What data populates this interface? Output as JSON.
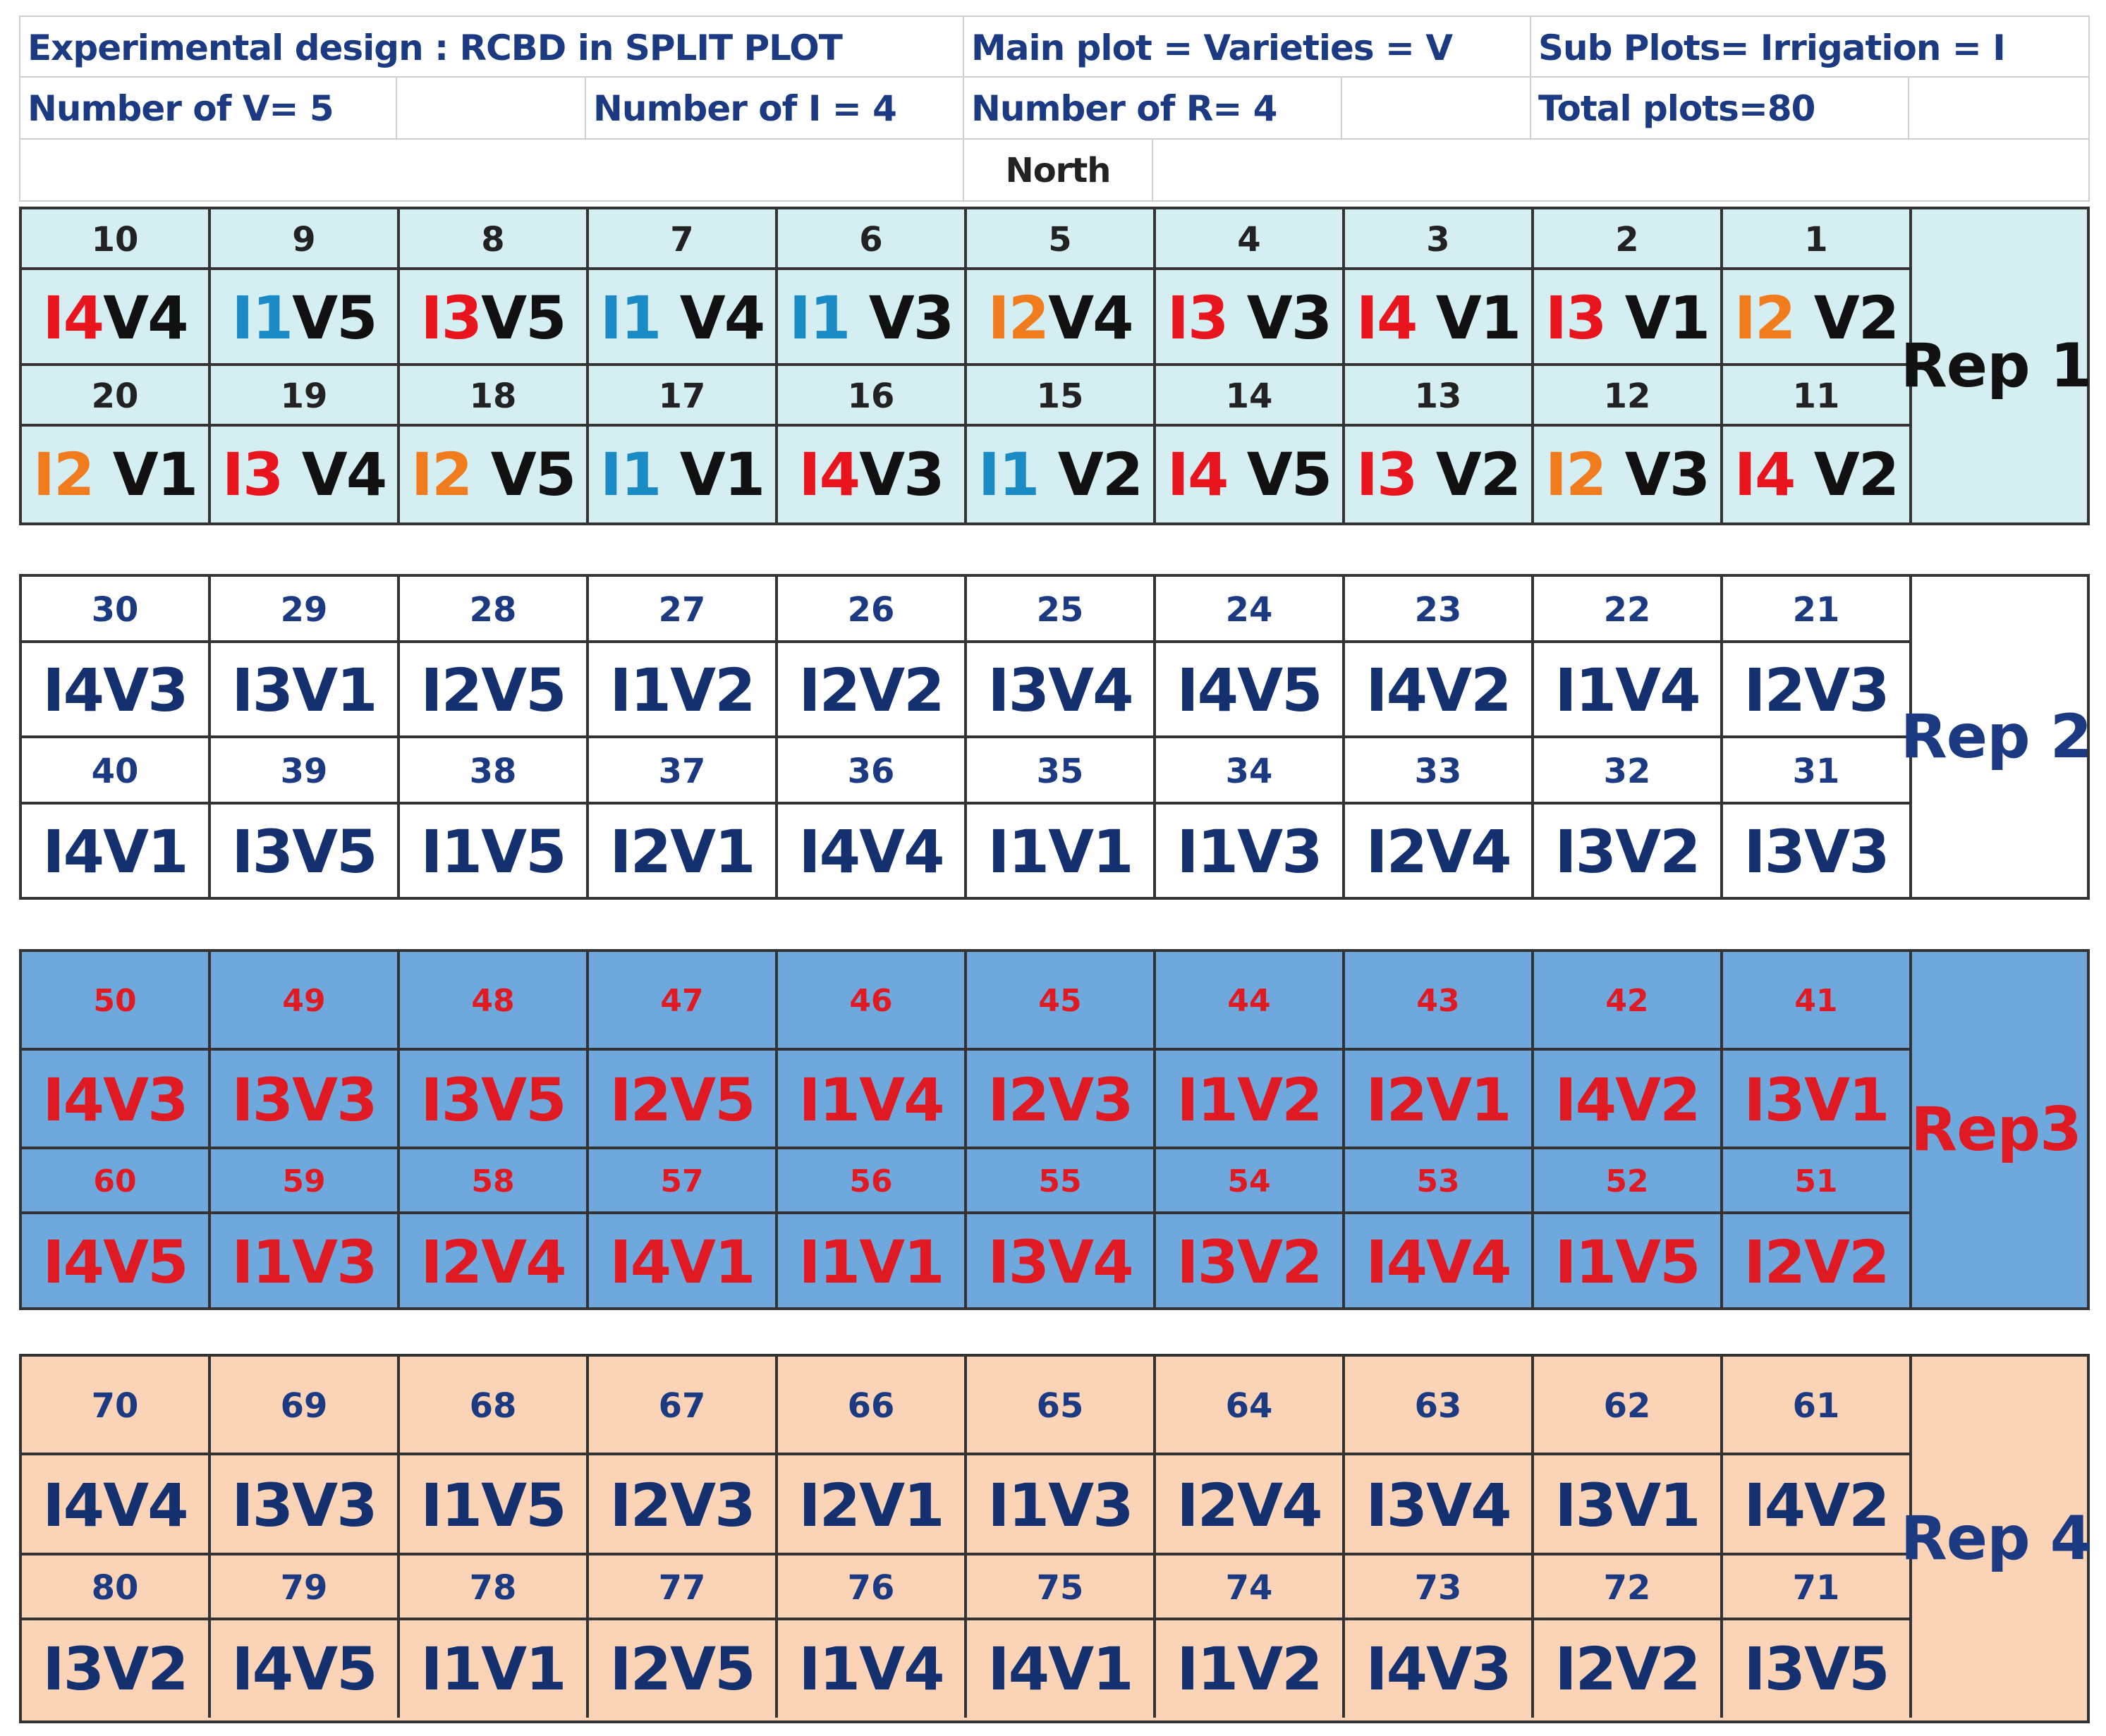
{
  "header": {
    "design": "Experimental design : RCBD in SPLIT PLOT",
    "main_plot": "Main plot = Varieties  = V",
    "sub_plots": "Sub Plots=  Irrigation = I",
    "num_v": "Number of V= 5",
    "num_i": "Number of I = 4",
    "num_r": "Number of R= 4",
    "total": "Total plots=80",
    "north": "North"
  },
  "reps": [
    {
      "label": "Rep 1",
      "rows": [
        {
          "numbers": [
            "10",
            "9",
            "8",
            "7",
            "6",
            "5",
            "4",
            "3",
            "2",
            "1"
          ],
          "plots": [
            {
              "i": "I4",
              "v": "V4"
            },
            {
              "i": "I1",
              "v": "V5"
            },
            {
              "i": "I3",
              "v": "V5"
            },
            {
              "i": "I1",
              "v": " V4"
            },
            {
              "i": "I1",
              "v": " V3"
            },
            {
              "i": "I2",
              "v": "V4"
            },
            {
              "i": "I3",
              "v": " V3"
            },
            {
              "i": "I4",
              "v": " V1"
            },
            {
              "i": "I3",
              "v": " V1"
            },
            {
              "i": "I2",
              "v": " V2"
            }
          ]
        },
        {
          "numbers": [
            "20",
            "19",
            "18",
            "17",
            "16",
            "15",
            "14",
            "13",
            "12",
            "11"
          ],
          "plots": [
            {
              "i": "I2",
              "v": " V1"
            },
            {
              "i": "I3",
              "v": " V4"
            },
            {
              "i": "I2",
              "v": " V5"
            },
            {
              "i": "I1",
              "v": " V1"
            },
            {
              "i": "I4",
              "v": "V3"
            },
            {
              "i": "I1",
              "v": " V2"
            },
            {
              "i": "I4",
              "v": " V5"
            },
            {
              "i": "I3",
              "v": " V2"
            },
            {
              "i": "I2",
              "v": " V3"
            },
            {
              "i": "I4",
              "v": " V2"
            }
          ]
        }
      ]
    },
    {
      "label": "Rep 2",
      "rows": [
        {
          "numbers": [
            "30",
            "29",
            "28",
            "27",
            "26",
            "25",
            "24",
            "23",
            "22",
            "21"
          ],
          "labels": [
            "I4V3",
            "I3V1",
            "I2V5",
            "I1V2",
            "I2V2",
            "I3V4",
            "I4V5",
            "I4V2",
            "I1V4",
            "I2V3"
          ]
        },
        {
          "numbers": [
            "40",
            "39",
            "38",
            "37",
            "36",
            "35",
            "34",
            "33",
            "32",
            "31"
          ],
          "labels": [
            "I4V1",
            "I3V5",
            "I1V5",
            "I2V1",
            "I4V4",
            "I1V1",
            "I1V3",
            "I2V4",
            "I3V2",
            "I3V3"
          ]
        }
      ]
    },
    {
      "label": "Rep3",
      "rows": [
        {
          "numbers": [
            "50",
            "49",
            "48",
            "47",
            "46",
            "45",
            "44",
            "43",
            "42",
            "41"
          ],
          "labels": [
            "I4V3",
            "I3V3",
            "I3V5",
            "I2V5",
            "I1V4",
            "I2V3",
            "I1V2",
            "I2V1",
            "I4V2",
            "I3V1"
          ]
        },
        {
          "numbers": [
            "60",
            "59",
            "58",
            "57",
            "56",
            "55",
            "54",
            "53",
            "52",
            "51"
          ],
          "labels": [
            "I4V5",
            "I1V3",
            "I2V4",
            "I4V1",
            "I1V1",
            "I3V4",
            "I3V2",
            "I4V4",
            "I1V5",
            "I2V2"
          ]
        }
      ]
    },
    {
      "label": "Rep 4",
      "rows": [
        {
          "numbers": [
            "70",
            "69",
            "68",
            "67",
            "66",
            "65",
            "64",
            "63",
            "62",
            "61"
          ],
          "labels": [
            "I4V4",
            "I3V3",
            "I1V5",
            "I2V3",
            "I2V1",
            "I1V3",
            "I2V4",
            "I3V4",
            "I3V1",
            "I4V2"
          ]
        },
        {
          "numbers": [
            "80",
            "79",
            "78",
            "77",
            "76",
            "75",
            "74",
            "73",
            "72",
            "71"
          ],
          "labels": [
            "I3V2",
            "I4V5",
            "I1V1",
            "I2V5",
            "I1V4",
            "I4V1",
            "I1V2",
            "I4V3",
            "I2V2",
            "I3V5"
          ]
        }
      ]
    }
  ],
  "colors": {
    "rep1_bg": "#d5eef2",
    "rep3_bg": "#6fa8dc",
    "rep4_bg": "#fbd3b6",
    "i1": "#1a8bc4",
    "i2": "#f07c1e",
    "i3": "#e8151f",
    "i4": "#e8151f",
    "rep3_text": "#e01a22",
    "navy_text": "#1b3a82"
  }
}
